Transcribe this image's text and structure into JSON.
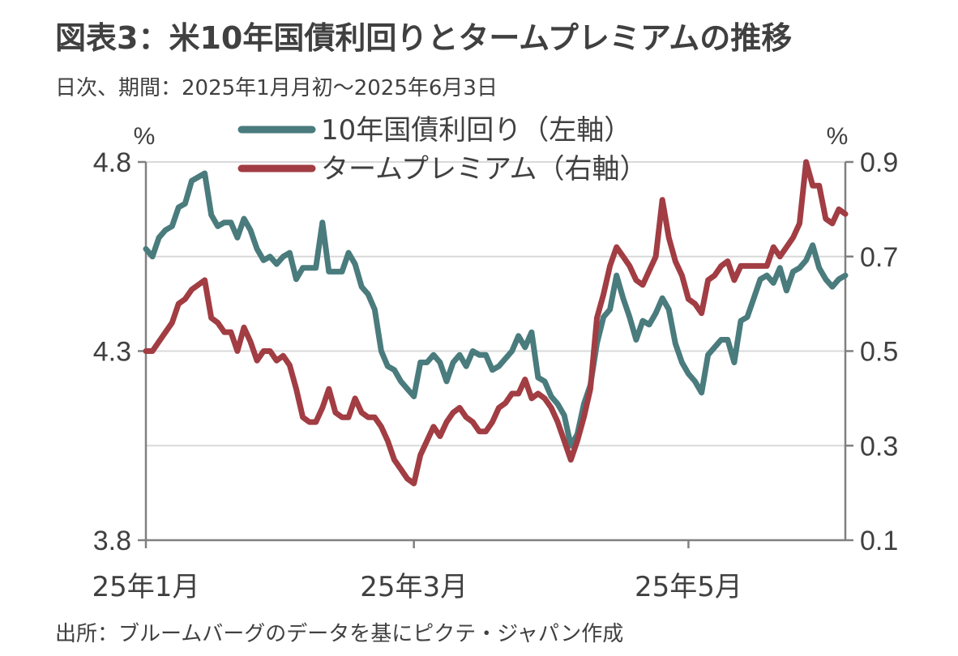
{
  "title": "図表3：米10年国債利回りとタームプレミアムの推移",
  "subtitle": "日次、期間：2025年1月月初～2025年6月3日",
  "source": "出所：ブルームバーグのデータを基にピクテ・ジャパン作成",
  "colors": {
    "series1": "#4a7b7d",
    "series2": "#a13d43",
    "axis": "#808080",
    "grid": "#d9d9d9"
  },
  "chart_data": {
    "type": "line",
    "title": "図表3：米10年国債利回りとタームプレミアムの推移",
    "left_axis": {
      "unit": "%",
      "ylim": [
        3.8,
        4.8
      ],
      "ticks": [
        "4.8",
        "4.3",
        "3.8"
      ],
      "tick_values": [
        4.8,
        4.3,
        3.8
      ]
    },
    "right_axis": {
      "unit": "%",
      "ylim": [
        0.1,
        0.9
      ],
      "ticks": [
        "0.9",
        "0.7",
        "0.5",
        "0.3",
        "0.1"
      ],
      "tick_values": [
        0.9,
        0.7,
        0.5,
        0.3,
        0.1
      ]
    },
    "x_ticks": [
      "25年1月",
      "25年3月",
      "25年5月"
    ],
    "x_tick_positions": [
      0,
      41,
      83
    ],
    "x_range": [
      0,
      107
    ],
    "legend": [
      "10年国債利回り（左軸）",
      "タームプレミアム（右軸）"
    ],
    "series": [
      {
        "name": "10年国債利回り（左軸）",
        "axis": "left",
        "x": [
          0,
          1,
          2,
          3,
          4,
          5,
          6,
          7,
          8,
          9,
          10,
          11,
          12,
          13,
          14,
          15,
          16,
          17,
          18,
          19,
          20,
          21,
          22,
          23,
          24,
          25,
          26,
          27,
          28,
          29,
          30,
          31,
          32,
          33,
          34,
          35,
          36,
          37,
          38,
          39,
          40,
          41,
          42,
          43,
          44,
          45,
          46,
          47,
          48,
          49,
          50,
          51,
          52,
          53,
          54,
          55,
          56,
          57,
          58,
          59,
          60,
          61,
          62,
          63,
          64,
          65,
          66,
          67,
          68,
          69,
          70,
          71,
          72,
          73,
          74,
          75,
          76,
          77,
          78,
          79,
          80,
          81,
          82,
          83,
          84,
          85,
          86,
          87,
          88,
          89,
          90,
          91,
          92,
          93,
          94,
          95,
          96,
          97,
          98,
          99,
          100,
          101,
          102,
          103,
          104,
          105,
          106,
          107
        ],
        "values": [
          4.57,
          4.55,
          4.6,
          4.62,
          4.63,
          4.68,
          4.69,
          4.75,
          4.76,
          4.77,
          4.66,
          4.63,
          4.64,
          4.64,
          4.6,
          4.65,
          4.62,
          4.57,
          4.54,
          4.55,
          4.53,
          4.55,
          4.56,
          4.49,
          4.52,
          4.52,
          4.52,
          4.64,
          4.51,
          4.51,
          4.51,
          4.56,
          4.53,
          4.47,
          4.45,
          4.41,
          4.3,
          4.26,
          4.25,
          4.22,
          4.2,
          4.18,
          4.27,
          4.27,
          4.29,
          4.27,
          4.22,
          4.27,
          4.29,
          4.26,
          4.3,
          4.29,
          4.29,
          4.25,
          4.26,
          4.28,
          4.3,
          4.34,
          4.31,
          4.35,
          4.23,
          4.22,
          4.18,
          4.16,
          4.13,
          4.05,
          4.08,
          4.16,
          4.21,
          4.32,
          4.39,
          4.41,
          4.5,
          4.44,
          4.39,
          4.33,
          4.38,
          4.37,
          4.4,
          4.44,
          4.41,
          4.32,
          4.27,
          4.24,
          4.22,
          4.19,
          4.29,
          4.31,
          4.33,
          4.33,
          4.27,
          4.38,
          4.39,
          4.44,
          4.49,
          4.5,
          4.48,
          4.52,
          4.46,
          4.51,
          4.52,
          4.54,
          4.58,
          4.52,
          4.49,
          4.47,
          4.49,
          4.5
        ]
      },
      {
        "name": "タームプレミアム（右軸）",
        "axis": "right",
        "x": [
          0,
          1,
          2,
          3,
          4,
          5,
          6,
          7,
          8,
          9,
          10,
          11,
          12,
          13,
          14,
          15,
          16,
          17,
          18,
          19,
          20,
          21,
          22,
          23,
          24,
          25,
          26,
          27,
          28,
          29,
          30,
          31,
          32,
          33,
          34,
          35,
          36,
          37,
          38,
          39,
          40,
          41,
          42,
          43,
          44,
          45,
          46,
          47,
          48,
          49,
          50,
          51,
          52,
          53,
          54,
          55,
          56,
          57,
          58,
          59,
          60,
          61,
          62,
          63,
          64,
          65,
          66,
          67,
          68,
          69,
          70,
          71,
          72,
          73,
          74,
          75,
          76,
          77,
          78,
          79,
          80,
          81,
          82,
          83,
          84,
          85,
          86,
          87,
          88,
          89,
          90,
          91,
          92,
          93,
          94,
          95,
          96,
          97,
          98,
          99,
          100,
          101,
          102,
          103,
          104,
          105,
          106,
          107
        ],
        "values": [
          0.5,
          0.5,
          0.52,
          0.54,
          0.56,
          0.6,
          0.61,
          0.63,
          0.64,
          0.65,
          0.57,
          0.56,
          0.54,
          0.54,
          0.5,
          0.55,
          0.52,
          0.48,
          0.5,
          0.5,
          0.48,
          0.49,
          0.47,
          0.42,
          0.36,
          0.35,
          0.35,
          0.38,
          0.42,
          0.37,
          0.36,
          0.36,
          0.4,
          0.37,
          0.36,
          0.36,
          0.34,
          0.31,
          0.27,
          0.25,
          0.23,
          0.22,
          0.28,
          0.31,
          0.34,
          0.32,
          0.35,
          0.37,
          0.38,
          0.36,
          0.35,
          0.33,
          0.33,
          0.35,
          0.38,
          0.39,
          0.41,
          0.41,
          0.44,
          0.4,
          0.41,
          0.4,
          0.38,
          0.35,
          0.31,
          0.27,
          0.31,
          0.36,
          0.42,
          0.57,
          0.62,
          0.68,
          0.72,
          0.7,
          0.68,
          0.65,
          0.64,
          0.67,
          0.7,
          0.82,
          0.74,
          0.69,
          0.66,
          0.61,
          0.6,
          0.58,
          0.65,
          0.66,
          0.68,
          0.69,
          0.65,
          0.68,
          0.68,
          0.68,
          0.68,
          0.68,
          0.72,
          0.7,
          0.72,
          0.74,
          0.77,
          0.9,
          0.85,
          0.85,
          0.78,
          0.77,
          0.8,
          0.79
        ]
      }
    ]
  }
}
